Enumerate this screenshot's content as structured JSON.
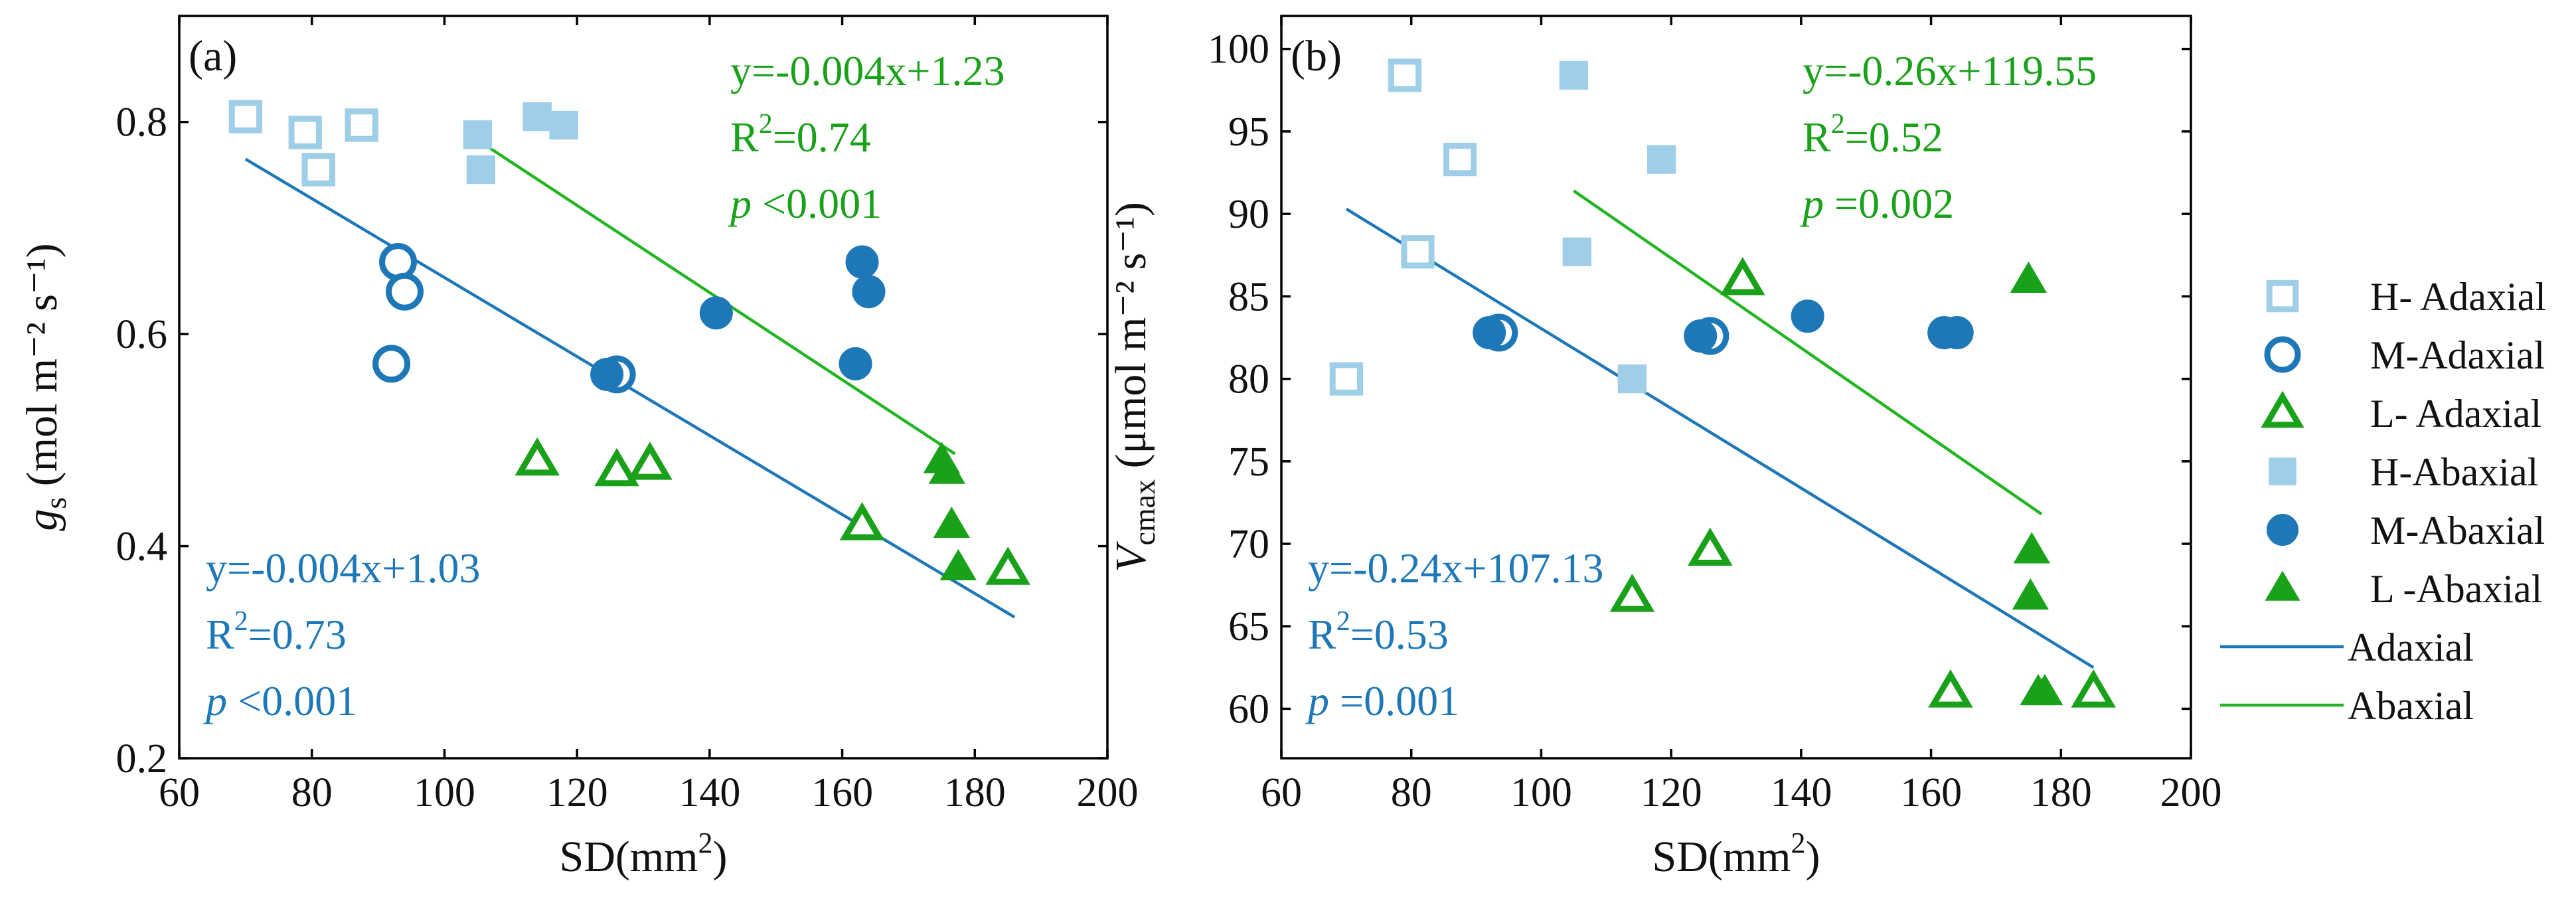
{
  "colors": {
    "h": "#9fcfe8",
    "m": "#1e78b8",
    "l": "#1aa11a",
    "adaxial_line": "#1e78b8",
    "abaxial_line": "#22b522",
    "axis": "#000000"
  },
  "legend": {
    "items": [
      {
        "label": "H- Adaxial",
        "marker": "square-open",
        "color_key": "h"
      },
      {
        "label": "M-Adaxial",
        "marker": "circle-open",
        "color_key": "m"
      },
      {
        "label": "L- Adaxial",
        "marker": "triangle-open",
        "color_key": "l"
      },
      {
        "label": "H-Abaxial",
        "marker": "square-filled",
        "color_key": "h"
      },
      {
        "label": "M-Abaxial",
        "marker": "circle-filled",
        "color_key": "m"
      },
      {
        "label": "L -Abaxial",
        "marker": "triangle-filled",
        "color_key": "l"
      },
      {
        "label": "Adaxial",
        "marker": "line",
        "color_key": "adaxial_line"
      },
      {
        "label": "Abaxial",
        "marker": "line",
        "color_key": "abaxial_line"
      }
    ]
  },
  "chart_data": [
    {
      "type": "scatter",
      "panel_label": "(a)",
      "xlabel_main": "SD(mm",
      "xlabel_sup": "2",
      "xlabel_end": ")",
      "ylabel_var": "g",
      "ylabel_sub": "s",
      "ylabel_unit": "(mol m⁻² s⁻¹)",
      "xlim": [
        60,
        200
      ],
      "ylim": [
        0.2,
        0.9
      ],
      "xticks": [
        60,
        80,
        100,
        120,
        140,
        160,
        180,
        200
      ],
      "yticks": [
        0.2,
        0.4,
        0.6,
        0.8
      ],
      "ytick_labels": [
        "0.2",
        "0.4",
        "0.6",
        "0.8"
      ],
      "series": [
        {
          "name": "H- Adaxial",
          "marker": "square-open",
          "color_key": "h",
          "points": [
            [
              70,
              0.805
            ],
            [
              79,
              0.79
            ],
            [
              81,
              0.755
            ],
            [
              87.5,
              0.797
            ]
          ]
        },
        {
          "name": "M-Adaxial",
          "marker": "circle-open",
          "color_key": "m",
          "points": [
            [
              92,
              0.572
            ],
            [
              93,
              0.668
            ],
            [
              94,
              0.64
            ],
            [
              126,
              0.562
            ]
          ]
        },
        {
          "name": "L- Adaxial",
          "marker": "triangle-open",
          "color_key": "l",
          "points": [
            [
              114,
              0.481
            ],
            [
              126,
              0.471
            ],
            [
              131,
              0.477
            ],
            [
              163,
              0.42
            ],
            [
              185,
              0.378
            ]
          ]
        },
        {
          "name": "H-Abaxial",
          "marker": "square-filled",
          "color_key": "h",
          "points": [
            [
              105,
              0.788
            ],
            [
              105.5,
              0.755
            ],
            [
              114,
              0.805
            ],
            [
              118,
              0.797
            ]
          ]
        },
        {
          "name": "M-Abaxial",
          "marker": "circle-filled",
          "color_key": "m",
          "points": [
            [
              124.5,
              0.562
            ],
            [
              141,
              0.62
            ],
            [
              162,
              0.572
            ],
            [
              163,
              0.668
            ],
            [
              164,
              0.64
            ]
          ]
        },
        {
          "name": "L -Abaxial",
          "marker": "triangle-filled",
          "color_key": "l",
          "points": [
            [
              175,
              0.481
            ],
            [
              175.8,
              0.471
            ],
            [
              176.5,
              0.42
            ],
            [
              177.5,
              0.38
            ]
          ]
        }
      ],
      "fits": [
        {
          "name": "Adaxial",
          "color_key": "adaxial_line",
          "x": [
            70,
            186
          ],
          "y": [
            0.765,
            0.333
          ]
        },
        {
          "name": "Abaxial",
          "color_key": "abaxial_line",
          "x": [
            105,
            177
          ],
          "y": [
            0.783,
            0.487
          ]
        }
      ],
      "annotations": [
        {
          "group": "abaxial",
          "color_key": "l",
          "anchor": "top-right",
          "equation": "y=-0.004x+1.23",
          "r2_prefix": "R",
          "r2_sup": "2",
          "r2_value": "=0.74",
          "p_label": "p",
          "p_value": " <0.001"
        },
        {
          "group": "adaxial",
          "color_key": "m",
          "anchor": "bottom-left",
          "equation": "y=-0.004x+1.03",
          "r2_prefix": "R",
          "r2_sup": "2",
          "r2_value": "=0.73",
          "p_label": "p",
          "p_value": " <0.001"
        }
      ]
    },
    {
      "type": "scatter",
      "panel_label": "(b)",
      "xlabel_main": "SD(mm",
      "xlabel_sup": "2",
      "xlabel_end": ")",
      "ylabel_var": "V",
      "ylabel_sub": "cmax",
      "ylabel_unit": "(μmol m⁻² s⁻¹)",
      "xlim": [
        60,
        200
      ],
      "ylim": [
        57,
        102
      ],
      "xticks": [
        60,
        80,
        100,
        120,
        140,
        160,
        180,
        200
      ],
      "yticks": [
        60,
        65,
        70,
        75,
        80,
        85,
        90,
        95,
        100
      ],
      "ytick_labels": [
        "60",
        "65",
        "70",
        "75",
        "80",
        "85",
        "90",
        "95",
        "100"
      ],
      "series": [
        {
          "name": "H- Adaxial",
          "marker": "square-open",
          "color_key": "h",
          "points": [
            [
              70,
              80
            ],
            [
              79,
              98.4
            ],
            [
              81,
              87.7
            ],
            [
              87.5,
              93.3
            ]
          ]
        },
        {
          "name": "M-Adaxial",
          "marker": "circle-open",
          "color_key": "m",
          "points": [
            [
              93.5,
              82.8
            ],
            [
              126,
              82.6
            ]
          ]
        },
        {
          "name": "L- Adaxial",
          "marker": "triangle-open",
          "color_key": "l",
          "points": [
            [
              114,
              66.8
            ],
            [
              126,
              69.6
            ],
            [
              131,
              86
            ],
            [
              163,
              61
            ],
            [
              185,
              61
            ]
          ]
        },
        {
          "name": "H-Abaxial",
          "marker": "square-filled",
          "color_key": "h",
          "points": [
            [
              105,
              98.4
            ],
            [
              105.5,
              87.7
            ],
            [
              114,
              80
            ],
            [
              118.5,
              93.3
            ]
          ]
        },
        {
          "name": "M-Abaxial",
          "marker": "circle-filled",
          "color_key": "m",
          "points": [
            [
              92,
              82.8
            ],
            [
              124.5,
              82.6
            ],
            [
              141,
              83.8
            ],
            [
              162,
              82.8
            ],
            [
              164,
              82.8
            ]
          ]
        },
        {
          "name": "L -Abaxial",
          "marker": "triangle-filled",
          "color_key": "l",
          "points": [
            [
              175,
              86
            ],
            [
              175.5,
              69.6
            ],
            [
              175.3,
              66.8
            ],
            [
              176.5,
              61
            ],
            [
              177.5,
              61
            ]
          ]
        }
      ],
      "fits": [
        {
          "name": "Adaxial",
          "color_key": "adaxial_line",
          "x": [
            70,
            185
          ],
          "y": [
            90.3,
            62.5
          ]
        },
        {
          "name": "Abaxial",
          "color_key": "abaxial_line",
          "x": [
            105,
            177
          ],
          "y": [
            91.4,
            71.8
          ]
        }
      ],
      "annotations": [
        {
          "group": "abaxial",
          "color_key": "l",
          "anchor": "top-right",
          "equation": "y=-0.26x+119.55",
          "r2_prefix": "R",
          "r2_sup": "2",
          "r2_value": "=0.52",
          "p_label": "p",
          "p_value": " =0.002"
        },
        {
          "group": "adaxial",
          "color_key": "m",
          "anchor": "bottom-left",
          "equation": "y=-0.24x+107.13",
          "r2_prefix": "R",
          "r2_sup": "2",
          "r2_value": "=0.53",
          "p_label": "p",
          "p_value": " =0.001"
        }
      ]
    }
  ]
}
